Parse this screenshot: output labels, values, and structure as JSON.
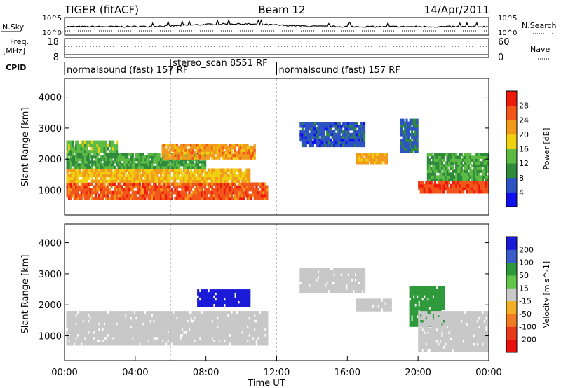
{
  "header": {
    "title": "TIGER (fitACF)",
    "beam": "Beam 12",
    "date": "14/Apr/2011"
  },
  "top_panels": {
    "nsky_label": "N.Sky",
    "nsearch_label": "N.Search",
    "freq_label_line1": "Freq.",
    "freq_label_line2": "[MHz]",
    "nave_label": "Nave",
    "cpid_label": "CPID",
    "noise_tick_top": "10^5",
    "noise_tick_bottom": "10^0",
    "freq_tick_top": "18",
    "freq_tick_bottom": "8",
    "nave_tick_top": "60",
    "nave_tick_bottom": "0",
    "cpid_segments": [
      {
        "label": "normalsound (fast) 157 RF",
        "start_hour": 0,
        "end_hour": 6
      },
      {
        "label": "stereo_scan 8551 RF",
        "start_hour": 6,
        "end_hour": 12
      },
      {
        "label": "normalsound (fast) 157 RF",
        "start_hour": 12,
        "end_hour": 24
      }
    ]
  },
  "chart_data": [
    {
      "type": "heatmap",
      "title": "",
      "xlabel": "Time UT",
      "ylabel": "Slant Range [km]",
      "x_ticks": [
        "00:00",
        "04:00",
        "08:00",
        "12:00",
        "16:00",
        "20:00",
        "00:00"
      ],
      "x_range_hours": [
        0,
        24
      ],
      "y_ticks": [
        "1000",
        "2000",
        "3000",
        "4000"
      ],
      "ylim": [
        200,
        4600
      ],
      "colorbar": {
        "label": "Power [dB]",
        "ticks": [
          "4",
          "8",
          "12",
          "16",
          "20",
          "24",
          "28"
        ],
        "range": [
          0,
          32
        ],
        "colors": [
          "#1010ee",
          "#2d52c4",
          "#2f8a3c",
          "#5dbb45",
          "#f0d010",
          "#f29a1c",
          "#f2561b",
          "#ee1a0b"
        ]
      },
      "bands": [
        {
          "t_start": 0.1,
          "t_end": 11.5,
          "r_start": 700,
          "r_end": 1250,
          "value": 26
        },
        {
          "t_start": 0.1,
          "t_end": 10.5,
          "r_start": 1250,
          "r_end": 1700,
          "value": 20
        },
        {
          "t_start": 0.1,
          "t_end": 8.0,
          "r_start": 1700,
          "r_end": 2200,
          "value": 12
        },
        {
          "t_start": 0.1,
          "t_end": 3.0,
          "r_start": 2200,
          "r_end": 2600,
          "value": 14
        },
        {
          "t_start": 5.5,
          "t_end": 10.8,
          "r_start": 2000,
          "r_end": 2500,
          "value": 22
        },
        {
          "t_start": 13.3,
          "t_end": 17.0,
          "r_start": 2400,
          "r_end": 3200,
          "value": 6
        },
        {
          "t_start": 16.5,
          "t_end": 18.3,
          "r_start": 1850,
          "r_end": 2200,
          "value": 21
        },
        {
          "t_start": 19.0,
          "t_end": 20.0,
          "r_start": 2200,
          "r_end": 3300,
          "value": 7
        },
        {
          "t_start": 20.0,
          "t_end": 24.0,
          "r_start": 900,
          "r_end": 1300,
          "value": 27
        },
        {
          "t_start": 20.5,
          "t_end": 24.0,
          "r_start": 1300,
          "r_end": 2200,
          "value": 12
        }
      ]
    },
    {
      "type": "heatmap",
      "title": "",
      "xlabel": "Time UT",
      "ylabel": "Slant Range [km]",
      "x_ticks": [
        "00:00",
        "04:00",
        "08:00",
        "12:00",
        "16:00",
        "20:00",
        "00:00"
      ],
      "x_range_hours": [
        0,
        24
      ],
      "y_ticks": [
        "1000",
        "2000",
        "3000",
        "4000"
      ],
      "ylim": [
        200,
        4600
      ],
      "colorbar": {
        "label": "Velocity [m s^-1]",
        "ticks": [
          "200",
          "100",
          "50",
          "15",
          "-15",
          "-50",
          "-100",
          "-200"
        ],
        "colors": [
          "#1a1ad8",
          "#3a5cc8",
          "#2f9a3c",
          "#62c64a",
          "#c8c8c8",
          "#f2b02a",
          "#f27a20",
          "#e83a1a",
          "#e8100c"
        ]
      },
      "bands": [
        {
          "t_start": 0.1,
          "t_end": 11.5,
          "r_start": 700,
          "r_end": 1800,
          "value": 0
        },
        {
          "t_start": 7.5,
          "t_end": 10.5,
          "r_start": 1950,
          "r_end": 2500,
          "value": 250
        },
        {
          "t_start": 13.3,
          "t_end": 17.0,
          "r_start": 2400,
          "r_end": 3200,
          "value": 0
        },
        {
          "t_start": 16.5,
          "t_end": 18.5,
          "r_start": 1800,
          "r_end": 2200,
          "value": 0
        },
        {
          "t_start": 19.5,
          "t_end": 21.5,
          "r_start": 1300,
          "r_end": 2600,
          "value": 70
        },
        {
          "t_start": 20.0,
          "t_end": 24.0,
          "r_start": 500,
          "r_end": 1800,
          "value": 0
        }
      ]
    }
  ]
}
